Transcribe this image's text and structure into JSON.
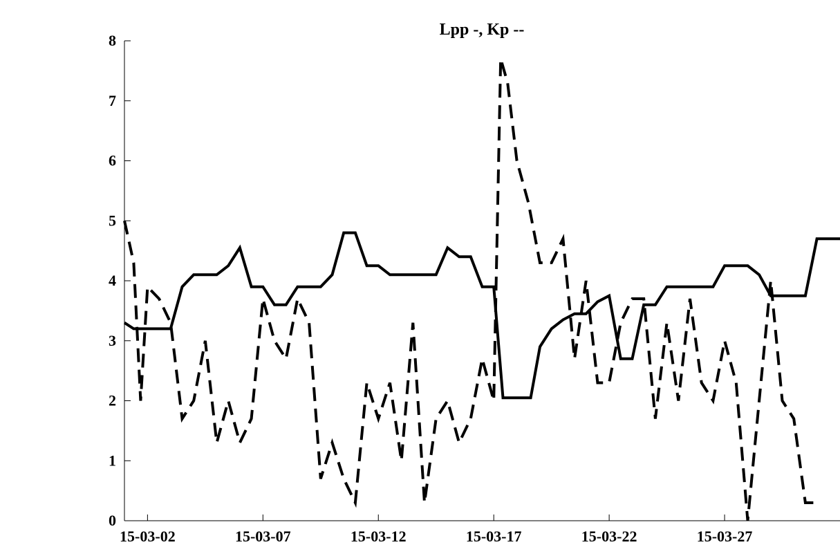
{
  "chart_data": {
    "type": "line",
    "title": "Lpp -, Kp --",
    "xlabel": "",
    "ylabel": "",
    "ylim": [
      0,
      8
    ],
    "yticks": [
      "0",
      "1",
      "2",
      "3",
      "4",
      "5",
      "6",
      "7",
      "8"
    ],
    "xticks": [
      "15-03-02",
      "15-03-07",
      "15-03-12",
      "15-03-17",
      "15-03-22",
      "15-03-27"
    ],
    "xtick_positions_days": [
      2,
      7,
      12,
      17,
      22,
      27
    ],
    "xlim_days": [
      1,
      32
    ],
    "x_unit": "day of March 2015",
    "grid": false,
    "series": [
      {
        "style": "solid",
        "color": "#000000",
        "x": [
          1.0,
          1.4,
          2.0,
          2.5,
          3.0,
          3.5,
          4.0,
          5.0,
          5.5,
          6.0,
          6.5,
          7.0,
          7.5,
          8.0,
          8.5,
          9.0,
          9.5,
          10.0,
          10.5,
          11.0,
          11.5,
          12.0,
          12.5,
          13.0,
          13.5,
          14.0,
          14.5,
          15.0,
          15.5,
          16.0,
          16.5,
          17.0,
          17.4,
          17.8,
          18.2,
          18.6,
          19.0,
          19.5,
          20.0,
          20.5,
          21.0,
          21.5,
          22.0,
          22.5,
          23.0,
          23.5,
          24.0,
          24.5,
          25.0,
          25.5,
          26.0,
          26.5,
          27.0,
          27.5,
          28.0,
          28.5,
          29.0,
          29.5,
          30.0,
          30.5,
          31.0,
          31.5,
          32.0
        ],
        "y": [
          3.3,
          3.2,
          3.2,
          3.2,
          3.2,
          3.9,
          4.1,
          4.1,
          4.25,
          4.55,
          3.9,
          3.9,
          3.6,
          3.6,
          3.9,
          3.9,
          3.9,
          4.1,
          4.8,
          4.8,
          4.25,
          4.25,
          4.1,
          4.1,
          4.1,
          4.1,
          4.1,
          4.55,
          4.4,
          4.4,
          3.9,
          3.9,
          2.05,
          2.05,
          2.05,
          2.05,
          2.9,
          3.2,
          3.35,
          3.45,
          3.45,
          3.65,
          3.75,
          2.7,
          2.7,
          3.6,
          3.6,
          3.9,
          3.9,
          3.9,
          3.9,
          3.9,
          4.25,
          4.25,
          4.25,
          4.1,
          3.75,
          3.75,
          3.75,
          3.75,
          4.7,
          4.7,
          4.7
        ]
      },
      {
        "style": "dashed",
        "color": "#000000",
        "x": [
          1.0,
          1.4,
          1.7,
          2.0,
          2.5,
          3.0,
          3.5,
          4.0,
          4.5,
          5.0,
          5.5,
          6.0,
          6.5,
          7.0,
          7.5,
          8.0,
          8.5,
          9.0,
          9.5,
          10.0,
          10.5,
          11.0,
          11.5,
          12.0,
          12.5,
          13.0,
          13.5,
          14.0,
          14.5,
          15.0,
          15.5,
          16.0,
          16.5,
          17.0,
          17.3,
          17.6,
          18.0,
          18.5,
          19.0,
          19.5,
          20.0,
          20.5,
          21.0,
          21.5,
          22.0,
          22.5,
          23.0,
          23.5,
          24.0,
          24.5,
          25.0,
          25.5,
          26.0,
          26.5,
          27.0,
          27.5,
          28.0,
          28.5,
          29.0,
          29.5,
          30.0,
          30.5,
          31.0
        ],
        "y": [
          5.0,
          4.3,
          2.0,
          3.9,
          3.7,
          3.3,
          1.7,
          2.0,
          3.0,
          1.3,
          2.0,
          1.3,
          1.7,
          3.7,
          3.0,
          2.7,
          3.7,
          3.3,
          0.7,
          1.3,
          0.7,
          0.3,
          2.3,
          1.7,
          2.3,
          1.0,
          3.3,
          0.3,
          1.7,
          2.0,
          1.3,
          1.7,
          2.7,
          2.0,
          7.7,
          7.3,
          6.0,
          5.3,
          4.3,
          4.3,
          4.7,
          2.7,
          4.0,
          2.3,
          2.3,
          3.3,
          3.7,
          3.7,
          1.7,
          3.3,
          2.0,
          3.7,
          2.3,
          2.0,
          3.0,
          2.3,
          0.0,
          2.0,
          4.0,
          2.0,
          1.7,
          0.3,
          0.3
        ]
      }
    ]
  }
}
